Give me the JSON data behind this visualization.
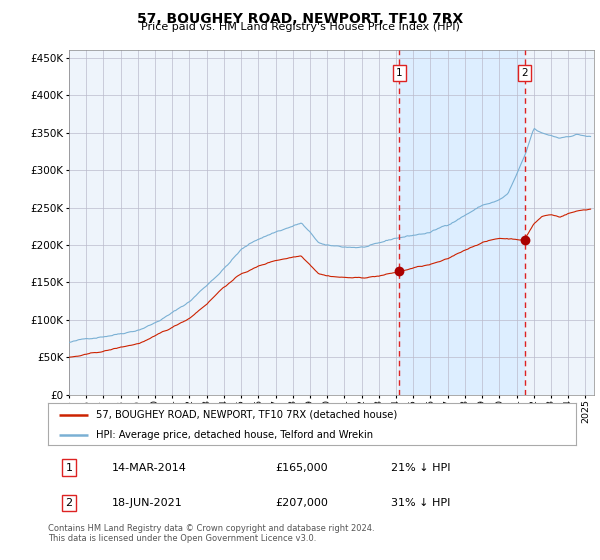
{
  "title": "57, BOUGHEY ROAD, NEWPORT, TF10 7RX",
  "subtitle": "Price paid vs. HM Land Registry's House Price Index (HPI)",
  "hpi_color": "#7ab0d4",
  "price_color": "#cc2200",
  "shaded_color": "#ddeeff",
  "dashed_color": "#dd2222",
  "marker_color": "#aa0000",
  "background_color": "#eef4fb",
  "grid_color": "#bbbbcc",
  "sale1_year": 2014.2,
  "sale1_price": 165000,
  "sale1_label": "1",
  "sale2_year": 2021.47,
  "sale2_price": 207000,
  "sale2_label": "2",
  "ylim": [
    0,
    460000
  ],
  "xlim": [
    1995,
    2025.5
  ],
  "yticks": [
    0,
    50000,
    100000,
    150000,
    200000,
    250000,
    300000,
    350000,
    400000,
    450000
  ],
  "xticks": [
    1995,
    1996,
    1997,
    1998,
    1999,
    2000,
    2001,
    2002,
    2003,
    2004,
    2005,
    2006,
    2007,
    2008,
    2009,
    2010,
    2011,
    2012,
    2013,
    2014,
    2015,
    2016,
    2017,
    2018,
    2019,
    2020,
    2021,
    2022,
    2023,
    2024,
    2025
  ],
  "legend_label1": "57, BOUGHEY ROAD, NEWPORT, TF10 7RX (detached house)",
  "legend_label2": "HPI: Average price, detached house, Telford and Wrekin",
  "table_row1": [
    "1",
    "14-MAR-2014",
    "£165,000",
    "21% ↓ HPI"
  ],
  "table_row2": [
    "2",
    "18-JUN-2021",
    "£207,000",
    "31% ↓ HPI"
  ],
  "footer": "Contains HM Land Registry data © Crown copyright and database right 2024.\nThis data is licensed under the Open Government Licence v3.0."
}
